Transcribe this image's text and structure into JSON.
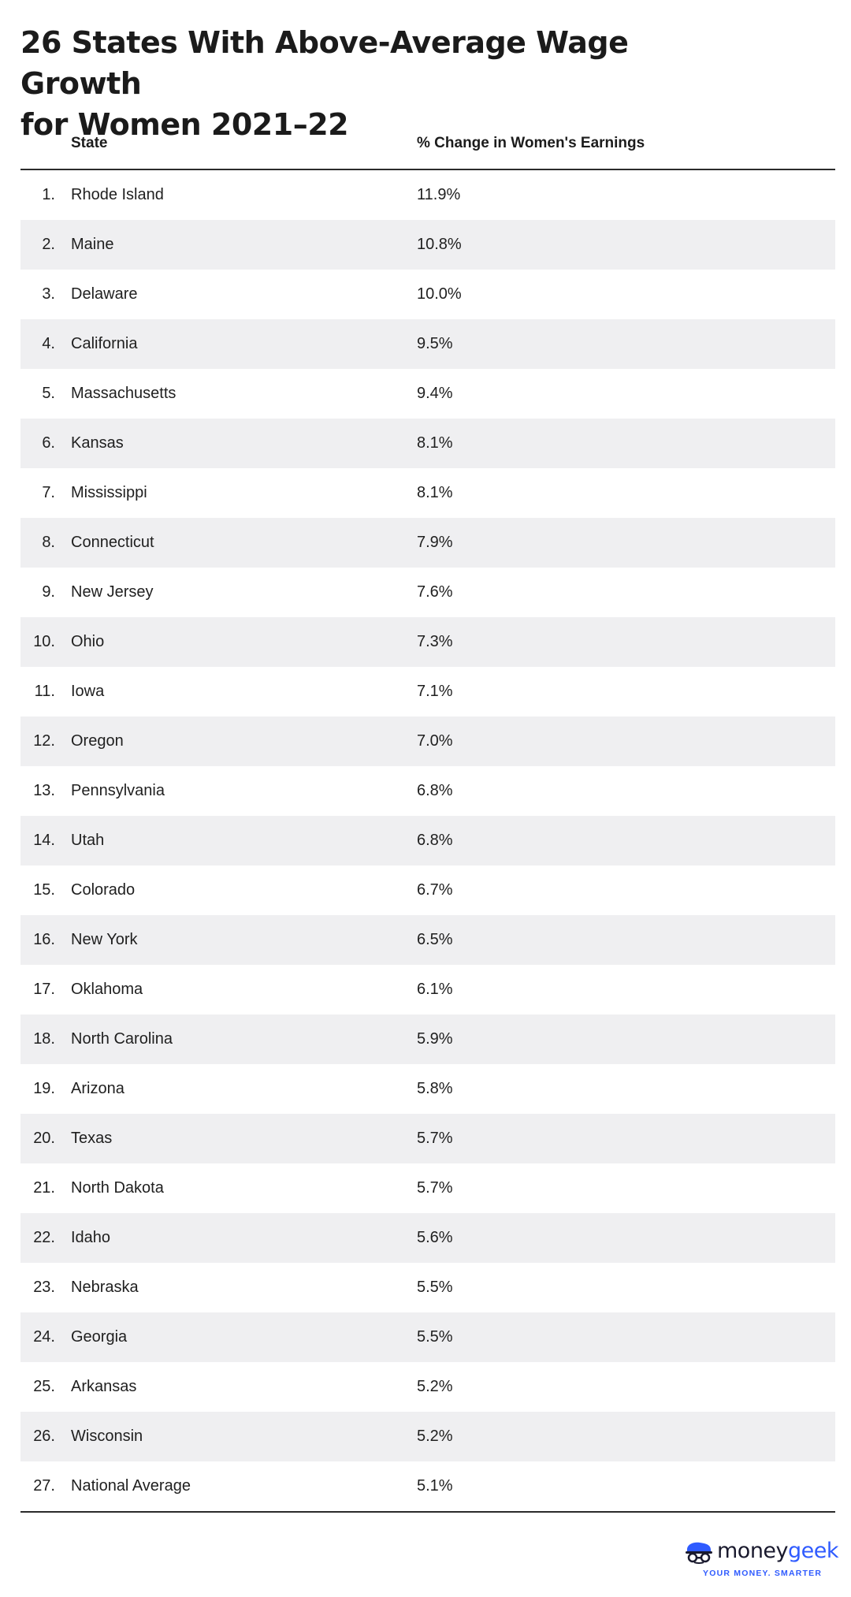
{
  "title_line1": "26 States With Above-Average Wage Growth",
  "title_line2": "for Women 2021–22",
  "columns": {
    "state": "State",
    "change": "% Change in Women's Earnings"
  },
  "rows": [
    {
      "rank": "1.",
      "state": "Rhode Island",
      "change": "11.9%"
    },
    {
      "rank": "2.",
      "state": "Maine",
      "change": "10.8%"
    },
    {
      "rank": "3.",
      "state": "Delaware",
      "change": "10.0%"
    },
    {
      "rank": "4.",
      "state": "California",
      "change": "9.5%"
    },
    {
      "rank": "5.",
      "state": "Massachusetts",
      "change": "9.4%"
    },
    {
      "rank": "6.",
      "state": "Kansas",
      "change": "8.1%"
    },
    {
      "rank": "7.",
      "state": "Mississippi",
      "change": "8.1%"
    },
    {
      "rank": "8.",
      "state": "Connecticut",
      "change": "7.9%"
    },
    {
      "rank": "9.",
      "state": "New Jersey",
      "change": "7.6%"
    },
    {
      "rank": "10.",
      "state": "Ohio",
      "change": "7.3%"
    },
    {
      "rank": "11.",
      "state": "Iowa",
      "change": "7.1%"
    },
    {
      "rank": "12.",
      "state": "Oregon",
      "change": "7.0%"
    },
    {
      "rank": "13.",
      "state": "Pennsylvania",
      "change": "6.8%"
    },
    {
      "rank": "14.",
      "state": "Utah",
      "change": "6.8%"
    },
    {
      "rank": "15.",
      "state": "Colorado",
      "change": "6.7%"
    },
    {
      "rank": "16.",
      "state": "New York",
      "change": "6.5%"
    },
    {
      "rank": "17.",
      "state": "Oklahoma",
      "change": "6.1%"
    },
    {
      "rank": "18.",
      "state": "North Carolina",
      "change": "5.9%"
    },
    {
      "rank": "19.",
      "state": "Arizona",
      "change": "5.8%"
    },
    {
      "rank": "20.",
      "state": "Texas",
      "change": "5.7%"
    },
    {
      "rank": "21.",
      "state": "North Dakota",
      "change": "5.7%"
    },
    {
      "rank": "22.",
      "state": "Idaho",
      "change": "5.6%"
    },
    {
      "rank": "23.",
      "state": "Nebraska",
      "change": "5.5%"
    },
    {
      "rank": "24.",
      "state": "Georgia",
      "change": "5.5%"
    },
    {
      "rank": "25.",
      "state": "Arkansas",
      "change": "5.2%"
    },
    {
      "rank": "26.",
      "state": "Wisconsin",
      "change": "5.2%"
    },
    {
      "rank": "27.",
      "state": "National Average",
      "change": "5.1%"
    }
  ],
  "brand": {
    "name_part1": "money",
    "name_part2": "geek",
    "tagline": "YOUR MONEY. SMARTER",
    "icon": "moneygeek-logo-icon",
    "accent_color": "#2f5bff"
  },
  "colors": {
    "row_stripe": "#efeff1",
    "rule": "#2b2b2b"
  }
}
